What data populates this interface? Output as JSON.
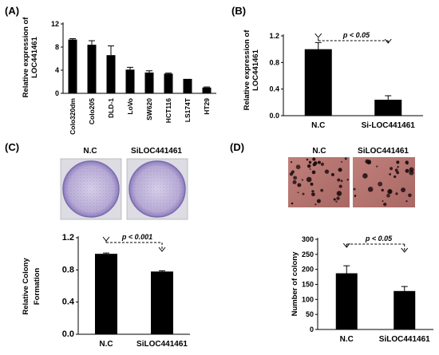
{
  "chart_data": [
    {
      "panel": "(A)",
      "type": "bar",
      "ylabel": "Relative expression of LOC441461",
      "ylabel_lines": [
        "Relative expression of",
        "LOC441461"
      ],
      "categories": [
        "Colo320dm",
        "Colo205",
        "DLD-1",
        "LoVo",
        "SW620",
        "HCT116",
        "LS174T",
        "HT29"
      ],
      "values": [
        9.3,
        8.4,
        6.6,
        4.1,
        3.6,
        3.4,
        2.5,
        1.0
      ],
      "errors": [
        0.15,
        0.7,
        1.6,
        0.4,
        0.3,
        0.1,
        0,
        0.1
      ],
      "yticks": [
        "0",
        "4",
        "8",
        "12"
      ],
      "ylim": [
        0,
        12
      ],
      "bar_color": "#000000"
    },
    {
      "panel": "(B)",
      "type": "bar",
      "ylabel": "Relative expression of LOC441461",
      "ylabel_lines": [
        "Relative expression of",
        "LOC441461"
      ],
      "categories": [
        "N.C",
        "Si-LOC441461"
      ],
      "values": [
        1.0,
        0.24
      ],
      "errors": [
        0.1,
        0.06
      ],
      "yticks": [
        "0.0",
        "0.4",
        "0.8",
        "1.2"
      ],
      "ylim": [
        0,
        1.2
      ],
      "annotation": "p < 0.05",
      "bar_color": "#000000"
    },
    {
      "panel": "(C)",
      "type": "bar",
      "ylabel": "Relative Colony Formation",
      "ylabel_lines": [
        "Relative Colony",
        "Formation"
      ],
      "categories": [
        "N.C",
        "SiLOC441461"
      ],
      "values": [
        1.0,
        0.78
      ],
      "errors": [
        0.01,
        0.01
      ],
      "yticks": [
        "0.0",
        "0.4",
        "0.8",
        "1.2"
      ],
      "ylim": [
        0,
        1.2
      ],
      "annotation": "p < 0.001",
      "image_labels": [
        "N.C",
        "SiLOC441461"
      ],
      "bar_color": "#000000"
    },
    {
      "panel": "(D)",
      "type": "bar",
      "ylabel": "Number of colony",
      "categories": [
        "N.C",
        "SiLOC441461"
      ],
      "values": [
        187,
        128
      ],
      "errors": [
        25,
        15
      ],
      "yticks": [
        "0",
        "50",
        "100",
        "150",
        "200",
        "250",
        "300"
      ],
      "ylim": [
        0,
        300
      ],
      "annotation": "p < 0.05",
      "image_labels": [
        "N.C",
        "SiLOC441461"
      ],
      "bar_color": "#000000"
    }
  ]
}
